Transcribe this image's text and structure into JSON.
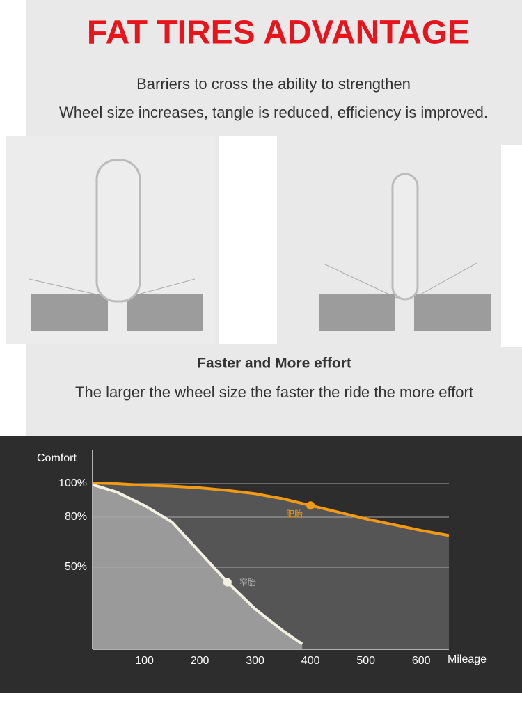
{
  "header": {
    "title": "FAT TIRES ADVANTAGE",
    "lines": [
      "Barriers to cross the ability to strengthen",
      "Wheel size increases, tangle is reduced,  efficiency is improved."
    ]
  },
  "section": {
    "heading": "Faster and More effort",
    "text": "The larger the wheel size the faster the ride the more effort"
  },
  "chart_data": {
    "type": "area",
    "y_label": "Comfort",
    "x_label": "Mileage",
    "x": [
      0,
      50,
      100,
      150,
      200,
      250,
      300,
      350,
      385,
      400,
      500,
      600,
      650
    ],
    "series": [
      {
        "name": "肥胎",
        "color": "#f39a14",
        "fill": "#555555",
        "values": [
          100.5,
          100,
          99,
          98.5,
          97.5,
          96,
          94,
          91,
          null,
          87,
          79,
          72,
          69
        ],
        "marker_index": 9
      },
      {
        "name": "窄胎",
        "color": "#f2f0e0",
        "fill": "#9a9a9a",
        "values": [
          100,
          95,
          87,
          77,
          59,
          41,
          25,
          12,
          4,
          null,
          null,
          null,
          null
        ],
        "marker_index": 5
      }
    ],
    "xlim": [
      0,
      650
    ],
    "ylim": [
      0,
      120
    ],
    "xticks": [
      100,
      200,
      300,
      400,
      500,
      600
    ],
    "yticks": [
      {
        "value": 50,
        "label": "50%"
      },
      {
        "value": 80,
        "label": "80%"
      },
      {
        "value": 100,
        "label": "100%"
      }
    ],
    "grid": true
  }
}
